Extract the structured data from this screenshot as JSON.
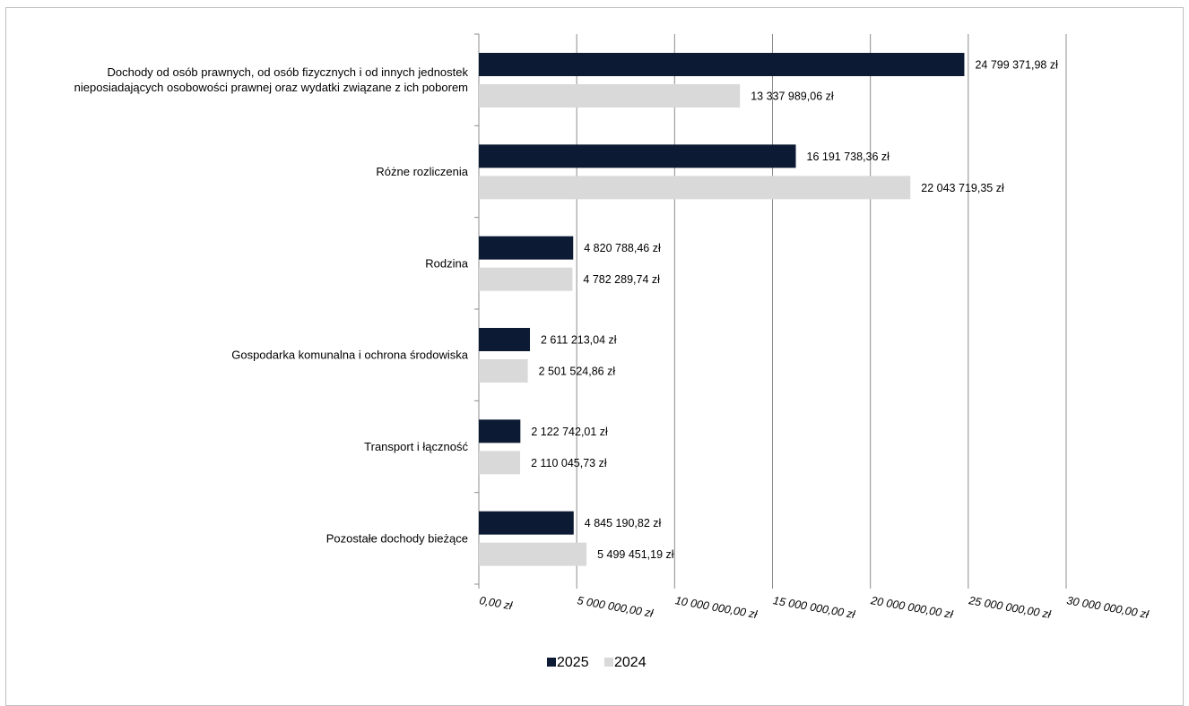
{
  "chart_data": {
    "type": "bar",
    "orientation": "horizontal",
    "categories": [
      [
        "Dochody od osób prawnych, od osób fizycznych i od innych jednostek",
        "nieposiadających osobowości prawnej oraz wydatki związane z ich poborem"
      ],
      [
        "Różne rozliczenia"
      ],
      [
        "Rodzina"
      ],
      [
        "Gospodarka komunalna i ochrona środowiska"
      ],
      [
        "Transport i łączność"
      ],
      [
        "Pozostałe dochody bieżące"
      ]
    ],
    "series": [
      {
        "name": "2025",
        "color": "#0c1b33",
        "values": [
          24799371.98,
          16191738.36,
          4820788.46,
          2611213.04,
          2122742.01,
          4845190.82
        ],
        "labels": [
          "24 799 371,98 zł",
          "16 191 738,36 zł",
          "4 820 788,46 zł",
          "2 611 213,04 zł",
          "2 122 742,01 zł",
          "4 845 190,82 zł"
        ]
      },
      {
        "name": "2024",
        "color": "#d9d9d9",
        "values": [
          13337989.06,
          22043719.35,
          4782289.74,
          2501524.86,
          2110045.73,
          5499451.19
        ],
        "labels": [
          "13 337 989,06 zł",
          "22 043 719,35 zł",
          "4 782 289,74 zł",
          "2 501 524,86 zł",
          "2 110 045,73 zł",
          "5 499 451,19 zł"
        ]
      }
    ],
    "xlim": [
      0,
      30000000
    ],
    "xticks": [
      0,
      5000000,
      10000000,
      15000000,
      20000000,
      25000000,
      30000000
    ],
    "xtick_labels": [
      "0,00 zł",
      "5 000 000,00 zł",
      "10 000 000,00 zł",
      "15 000 000,00 zł",
      "20 000 000,00 zł",
      "25 000 000,00 zł",
      "30 000 000,00 zł"
    ],
    "grid": true,
    "legend_position": "bottom"
  }
}
